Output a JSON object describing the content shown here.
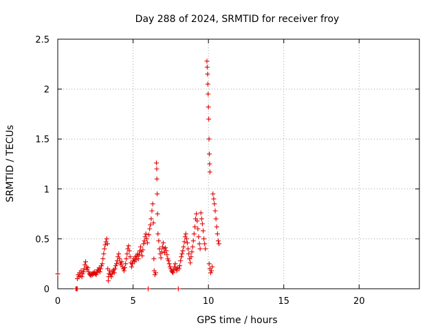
{
  "chart_data": {
    "type": "scatter",
    "title": "Day 288 of 2024, SRMTID for receiver froy",
    "xlabel": "GPS time / hours",
    "ylabel": "SRMTID / TECUs",
    "xlim": [
      0,
      24
    ],
    "ylim": [
      0,
      2.5
    ],
    "xticks": [
      0,
      5,
      10,
      15,
      20
    ],
    "yticks": [
      0,
      0.5,
      1,
      1.5,
      2,
      2.5
    ],
    "xtick_labels": [
      "0",
      "5",
      "10",
      "15",
      "20"
    ],
    "ytick_labels": [
      "0",
      "0.5",
      "1",
      "1.5",
      "2",
      "2.5"
    ],
    "grid": true,
    "marker": "plus",
    "color": "#e00000",
    "series": [
      {
        "name": "SRMTID",
        "points": [
          [
            0.0,
            0.15
          ],
          [
            1.2,
            0.0
          ],
          [
            1.25,
            0.0
          ],
          [
            1.3,
            0.0
          ],
          [
            1.3,
            0.1
          ],
          [
            1.35,
            0.14
          ],
          [
            1.4,
            0.12
          ],
          [
            1.45,
            0.16
          ],
          [
            1.5,
            0.13
          ],
          [
            1.55,
            0.18
          ],
          [
            1.6,
            0.12
          ],
          [
            1.65,
            0.15
          ],
          [
            1.7,
            0.17
          ],
          [
            1.75,
            0.2
          ],
          [
            1.8,
            0.24
          ],
          [
            1.85,
            0.27
          ],
          [
            1.9,
            0.22
          ],
          [
            1.95,
            0.19
          ],
          [
            2.0,
            0.21
          ],
          [
            2.05,
            0.17
          ],
          [
            2.1,
            0.15
          ],
          [
            2.15,
            0.14
          ],
          [
            2.2,
            0.13
          ],
          [
            2.25,
            0.15
          ],
          [
            2.3,
            0.14
          ],
          [
            2.35,
            0.16
          ],
          [
            2.4,
            0.15
          ],
          [
            2.45,
            0.17
          ],
          [
            2.5,
            0.15
          ],
          [
            2.55,
            0.14
          ],
          [
            2.6,
            0.16
          ],
          [
            2.65,
            0.19
          ],
          [
            2.7,
            0.18
          ],
          [
            2.75,
            0.21
          ],
          [
            2.8,
            0.17
          ],
          [
            2.85,
            0.2
          ],
          [
            2.9,
            0.23
          ],
          [
            2.95,
            0.25
          ],
          [
            3.0,
            0.3
          ],
          [
            3.05,
            0.35
          ],
          [
            3.1,
            0.4
          ],
          [
            3.15,
            0.44
          ],
          [
            3.2,
            0.47
          ],
          [
            3.25,
            0.5
          ],
          [
            3.3,
            0.45
          ],
          [
            3.32,
            0.2
          ],
          [
            3.35,
            0.08
          ],
          [
            3.38,
            0.12
          ],
          [
            3.4,
            0.15
          ],
          [
            3.45,
            0.18
          ],
          [
            3.5,
            0.14
          ],
          [
            3.55,
            0.12
          ],
          [
            3.6,
            0.15
          ],
          [
            3.65,
            0.17
          ],
          [
            3.7,
            0.19
          ],
          [
            3.75,
            0.16
          ],
          [
            3.8,
            0.2
          ],
          [
            3.85,
            0.23
          ],
          [
            3.9,
            0.25
          ],
          [
            3.95,
            0.28
          ],
          [
            4.0,
            0.32
          ],
          [
            4.05,
            0.35
          ],
          [
            4.1,
            0.3
          ],
          [
            4.15,
            0.26
          ],
          [
            4.2,
            0.24
          ],
          [
            4.25,
            0.27
          ],
          [
            4.3,
            0.22
          ],
          [
            4.35,
            0.2
          ],
          [
            4.4,
            0.18
          ],
          [
            4.45,
            0.21
          ],
          [
            4.5,
            0.25
          ],
          [
            4.55,
            0.3
          ],
          [
            4.6,
            0.35
          ],
          [
            4.65,
            0.4
          ],
          [
            4.7,
            0.43
          ],
          [
            4.75,
            0.38
          ],
          [
            4.8,
            0.32
          ],
          [
            4.85,
            0.26
          ],
          [
            4.9,
            0.22
          ],
          [
            4.95,
            0.25
          ],
          [
            5.0,
            0.28
          ],
          [
            5.05,
            0.3
          ],
          [
            5.1,
            0.27
          ],
          [
            5.15,
            0.32
          ],
          [
            5.2,
            0.29
          ],
          [
            5.25,
            0.33
          ],
          [
            5.3,
            0.35
          ],
          [
            5.35,
            0.3
          ],
          [
            5.4,
            0.34
          ],
          [
            5.45,
            0.38
          ],
          [
            5.5,
            0.42
          ],
          [
            5.55,
            0.37
          ],
          [
            5.6,
            0.33
          ],
          [
            5.65,
            0.39
          ],
          [
            5.7,
            0.45
          ],
          [
            5.75,
            0.48
          ],
          [
            5.8,
            0.52
          ],
          [
            5.85,
            0.55
          ],
          [
            5.9,
            0.5
          ],
          [
            5.95,
            0.46
          ],
          [
            6.0,
            0.0
          ],
          [
            6.05,
            0.54
          ],
          [
            6.1,
            0.6
          ],
          [
            6.15,
            0.64
          ],
          [
            6.2,
            0.7
          ],
          [
            6.25,
            0.78
          ],
          [
            6.3,
            0.85
          ],
          [
            6.35,
            0.66
          ],
          [
            6.38,
            0.3
          ],
          [
            6.4,
            0.18
          ],
          [
            6.45,
            0.14
          ],
          [
            6.5,
            0.16
          ],
          [
            6.55,
            1.26
          ],
          [
            6.57,
            1.2
          ],
          [
            6.58,
            1.1
          ],
          [
            6.6,
            0.95
          ],
          [
            6.62,
            0.75
          ],
          [
            6.65,
            0.55
          ],
          [
            6.7,
            0.48
          ],
          [
            6.75,
            0.4
          ],
          [
            6.8,
            0.35
          ],
          [
            6.85,
            0.31
          ],
          [
            6.9,
            0.37
          ],
          [
            6.95,
            0.42
          ],
          [
            7.0,
            0.46
          ],
          [
            7.05,
            0.4
          ],
          [
            7.1,
            0.36
          ],
          [
            7.15,
            0.41
          ],
          [
            7.2,
            0.38
          ],
          [
            7.25,
            0.34
          ],
          [
            7.3,
            0.3
          ],
          [
            7.35,
            0.28
          ],
          [
            7.4,
            0.25
          ],
          [
            7.45,
            0.22
          ],
          [
            7.5,
            0.2
          ],
          [
            7.55,
            0.18
          ],
          [
            7.6,
            0.17
          ],
          [
            7.65,
            0.16
          ],
          [
            7.7,
            0.19
          ],
          [
            7.75,
            0.22
          ],
          [
            7.8,
            0.25
          ],
          [
            7.85,
            0.2
          ],
          [
            7.9,
            0.18
          ],
          [
            7.95,
            0.21
          ],
          [
            8.0,
            0.0
          ],
          [
            8.05,
            0.2
          ],
          [
            8.1,
            0.23
          ],
          [
            8.15,
            0.28
          ],
          [
            8.2,
            0.32
          ],
          [
            8.25,
            0.35
          ],
          [
            8.3,
            0.38
          ],
          [
            8.35,
            0.42
          ],
          [
            8.4,
            0.47
          ],
          [
            8.45,
            0.52
          ],
          [
            8.5,
            0.55
          ],
          [
            8.55,
            0.5
          ],
          [
            8.6,
            0.46
          ],
          [
            8.65,
            0.4
          ],
          [
            8.7,
            0.35
          ],
          [
            8.75,
            0.3
          ],
          [
            8.8,
            0.26
          ],
          [
            8.85,
            0.32
          ],
          [
            8.9,
            0.37
          ],
          [
            8.95,
            0.42
          ],
          [
            9.0,
            0.48
          ],
          [
            9.05,
            0.55
          ],
          [
            9.1,
            0.62
          ],
          [
            9.15,
            0.7
          ],
          [
            9.2,
            0.75
          ],
          [
            9.25,
            0.68
          ],
          [
            9.3,
            0.6
          ],
          [
            9.35,
            0.52
          ],
          [
            9.4,
            0.45
          ],
          [
            9.45,
            0.4
          ],
          [
            9.5,
            0.76
          ],
          [
            9.55,
            0.7
          ],
          [
            9.6,
            0.65
          ],
          [
            9.65,
            0.58
          ],
          [
            9.7,
            0.5
          ],
          [
            9.75,
            0.45
          ],
          [
            9.8,
            0.4
          ],
          [
            9.9,
            2.28
          ],
          [
            9.92,
            2.22
          ],
          [
            9.94,
            2.15
          ],
          [
            9.96,
            2.05
          ],
          [
            9.98,
            1.95
          ],
          [
            10.0,
            1.82
          ],
          [
            10.02,
            1.7
          ],
          [
            10.04,
            1.5
          ],
          [
            10.06,
            1.35
          ],
          [
            10.08,
            1.25
          ],
          [
            10.1,
            1.17
          ],
          [
            10.05,
            0.25
          ],
          [
            10.1,
            0.2
          ],
          [
            10.15,
            0.16
          ],
          [
            10.2,
            0.18
          ],
          [
            10.25,
            0.22
          ],
          [
            10.3,
            0.95
          ],
          [
            10.35,
            0.9
          ],
          [
            10.4,
            0.85
          ],
          [
            10.45,
            0.78
          ],
          [
            10.5,
            0.7
          ],
          [
            10.55,
            0.62
          ],
          [
            10.6,
            0.55
          ],
          [
            10.65,
            0.48
          ],
          [
            10.7,
            0.45
          ]
        ]
      }
    ]
  }
}
